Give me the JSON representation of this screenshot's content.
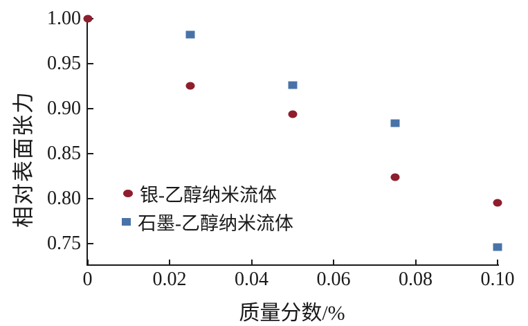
{
  "figure": {
    "background": "#ffffff",
    "axis_color": "#1a1a1a"
  },
  "chart_data": {
    "type": "scatter",
    "title": "",
    "xlabel": "质量分数/%",
    "ylabel": "相对表面张力",
    "xlim": [
      0,
      0.1
    ],
    "ylim": [
      0.726,
      1.005
    ],
    "grid": false,
    "legend_position": "inside-left-middle",
    "x_ticks": [
      {
        "v": 0,
        "label": "0"
      },
      {
        "v": 0.02,
        "label": "0.02"
      },
      {
        "v": 0.04,
        "label": "0.04"
      },
      {
        "v": 0.06,
        "label": "0.06"
      },
      {
        "v": 0.08,
        "label": "0.08"
      },
      {
        "v": 0.1,
        "label": "0.10"
      }
    ],
    "y_ticks": [
      {
        "v": 1.0,
        "label": "1.00"
      },
      {
        "v": 0.95,
        "label": "0.95"
      },
      {
        "v": 0.9,
        "label": "0.90"
      },
      {
        "v": 0.85,
        "label": "0.85"
      },
      {
        "v": 0.8,
        "label": "0.80"
      },
      {
        "v": 0.75,
        "label": "0.75"
      }
    ],
    "series": [
      {
        "name": "银-乙醇纳米流体",
        "marker": "circle",
        "color": "#8e1e2d",
        "points": [
          [
            0,
            1.0
          ],
          [
            0.025,
            0.925
          ],
          [
            0.05,
            0.894
          ],
          [
            0.075,
            0.824
          ],
          [
            0.1,
            0.795
          ]
        ]
      },
      {
        "name": "石墨-乙醇纳米流体",
        "marker": "square",
        "color": "#4973a8",
        "points": [
          [
            0.025,
            0.982
          ],
          [
            0.05,
            0.926
          ],
          [
            0.075,
            0.884
          ],
          [
            0.1,
            0.746
          ]
        ]
      }
    ]
  }
}
